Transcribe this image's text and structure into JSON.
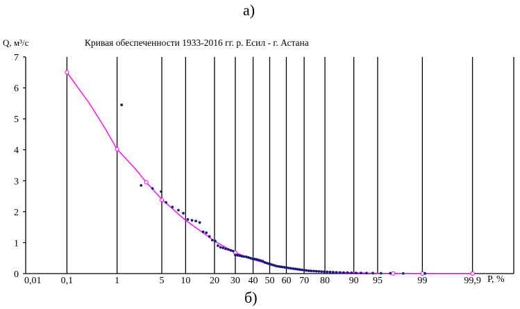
{
  "panel_labels": {
    "top": "а)",
    "bottom": "б)"
  },
  "chart_data": {
    "type": "scatter",
    "title": "Кривая обеспеченности 1933-2016 гг. р. Есил - г. Астана",
    "ylabel": "Q, м³/с",
    "xlabel": "Р, %",
    "x_scale": "probability",
    "ylim": [
      0,
      7
    ],
    "yticks": [
      0,
      1,
      2,
      3,
      4,
      5,
      6,
      7
    ],
    "grid": "vertical",
    "xticks": [
      {
        "value": 0.01,
        "label": "0,01"
      },
      {
        "value": 0.1,
        "label": "0,1"
      },
      {
        "value": 1,
        "label": "1"
      },
      {
        "value": 5,
        "label": "5"
      },
      {
        "value": 10,
        "label": "10"
      },
      {
        "value": 20,
        "label": "20"
      },
      {
        "value": 30,
        "label": "30"
      },
      {
        "value": 40,
        "label": "40"
      },
      {
        "value": 50,
        "label": "50"
      },
      {
        "value": 60,
        "label": "60"
      },
      {
        "value": 70,
        "label": "70"
      },
      {
        "value": 80,
        "label": "80"
      },
      {
        "value": 90,
        "label": "90"
      },
      {
        "value": 95,
        "label": "95"
      },
      {
        "value": 99,
        "label": "99"
      },
      {
        "value": 99.9,
        "label": "99,9"
      }
    ],
    "series": [
      {
        "kind": "curve",
        "color": "#ff00ff",
        "x": [
          0.1,
          0.3,
          0.6,
          1,
          2,
          3,
          5,
          8,
          10,
          15,
          20,
          25,
          30,
          40,
          50,
          60,
          70,
          80,
          90,
          95,
          97,
          99,
          99.9
        ],
        "y": [
          6.5,
          5.5,
          4.7,
          4.02,
          3.4,
          2.95,
          2.4,
          1.95,
          1.72,
          1.35,
          1.05,
          0.85,
          0.68,
          0.45,
          0.3,
          0.2,
          0.12,
          0.06,
          0.025,
          0.01,
          0.004,
          0.0,
          0.0
        ]
      },
      {
        "kind": "markers",
        "color": "#ff00ff",
        "x": [
          0.1,
          1,
          3,
          5,
          30,
          97,
          99,
          99.9
        ],
        "y": [
          6.5,
          4.02,
          2.95,
          2.38,
          0.68,
          0.004,
          0.0,
          0.0
        ]
      },
      {
        "kind": "points",
        "color": "#1a1a7a",
        "x": [
          1.2,
          2.5,
          3.7,
          4.9,
          5.7,
          6.9,
          8.2,
          9.4,
          10.6,
          11.8,
          13.0,
          14.3,
          15.5,
          16.7,
          17.9,
          19.1,
          20.3,
          21.5,
          22.7,
          23.9,
          25.1,
          26.4,
          27.6,
          28.8,
          30.0,
          31.2,
          32.4,
          33.6,
          34.8,
          36.1,
          37.3,
          38.5,
          39.7,
          40.9,
          42.1,
          43.3,
          44.5,
          45.8,
          47.0,
          48.2,
          49.4,
          50.6,
          51.8,
          53.0,
          54.2,
          55.5,
          56.7,
          57.9,
          59.1,
          60.3,
          61.5,
          62.7,
          63.9,
          65.2,
          66.4,
          67.6,
          68.8,
          70.0,
          71.2,
          72.4,
          73.6,
          74.9,
          76.1,
          77.3,
          78.5,
          79.7,
          80.9,
          82.1,
          83.3,
          84.5,
          85.8,
          87.0,
          88.2,
          89.4,
          90.6,
          91.8,
          93.0,
          94.2,
          95.5,
          96.7,
          97.9,
          99.1
        ],
        "y": [
          5.45,
          2.85,
          2.75,
          2.65,
          2.3,
          2.15,
          2.05,
          1.95,
          1.75,
          1.72,
          1.7,
          1.65,
          1.35,
          1.32,
          1.2,
          1.08,
          1.05,
          0.9,
          0.85,
          0.83,
          0.8,
          0.78,
          0.75,
          0.73,
          0.6,
          0.59,
          0.58,
          0.56,
          0.55,
          0.54,
          0.52,
          0.5,
          0.48,
          0.47,
          0.46,
          0.44,
          0.42,
          0.4,
          0.36,
          0.34,
          0.32,
          0.3,
          0.28,
          0.26,
          0.24,
          0.23,
          0.22,
          0.21,
          0.2,
          0.19,
          0.18,
          0.17,
          0.16,
          0.15,
          0.14,
          0.13,
          0.12,
          0.11,
          0.1,
          0.09,
          0.085,
          0.08,
          0.075,
          0.07,
          0.065,
          0.06,
          0.055,
          0.05,
          0.045,
          0.04,
          0.035,
          0.03,
          0.03,
          0.025,
          0.02,
          0.02,
          0.015,
          0.015,
          0.01,
          0.01,
          0.005,
          0.005
        ]
      }
    ]
  }
}
